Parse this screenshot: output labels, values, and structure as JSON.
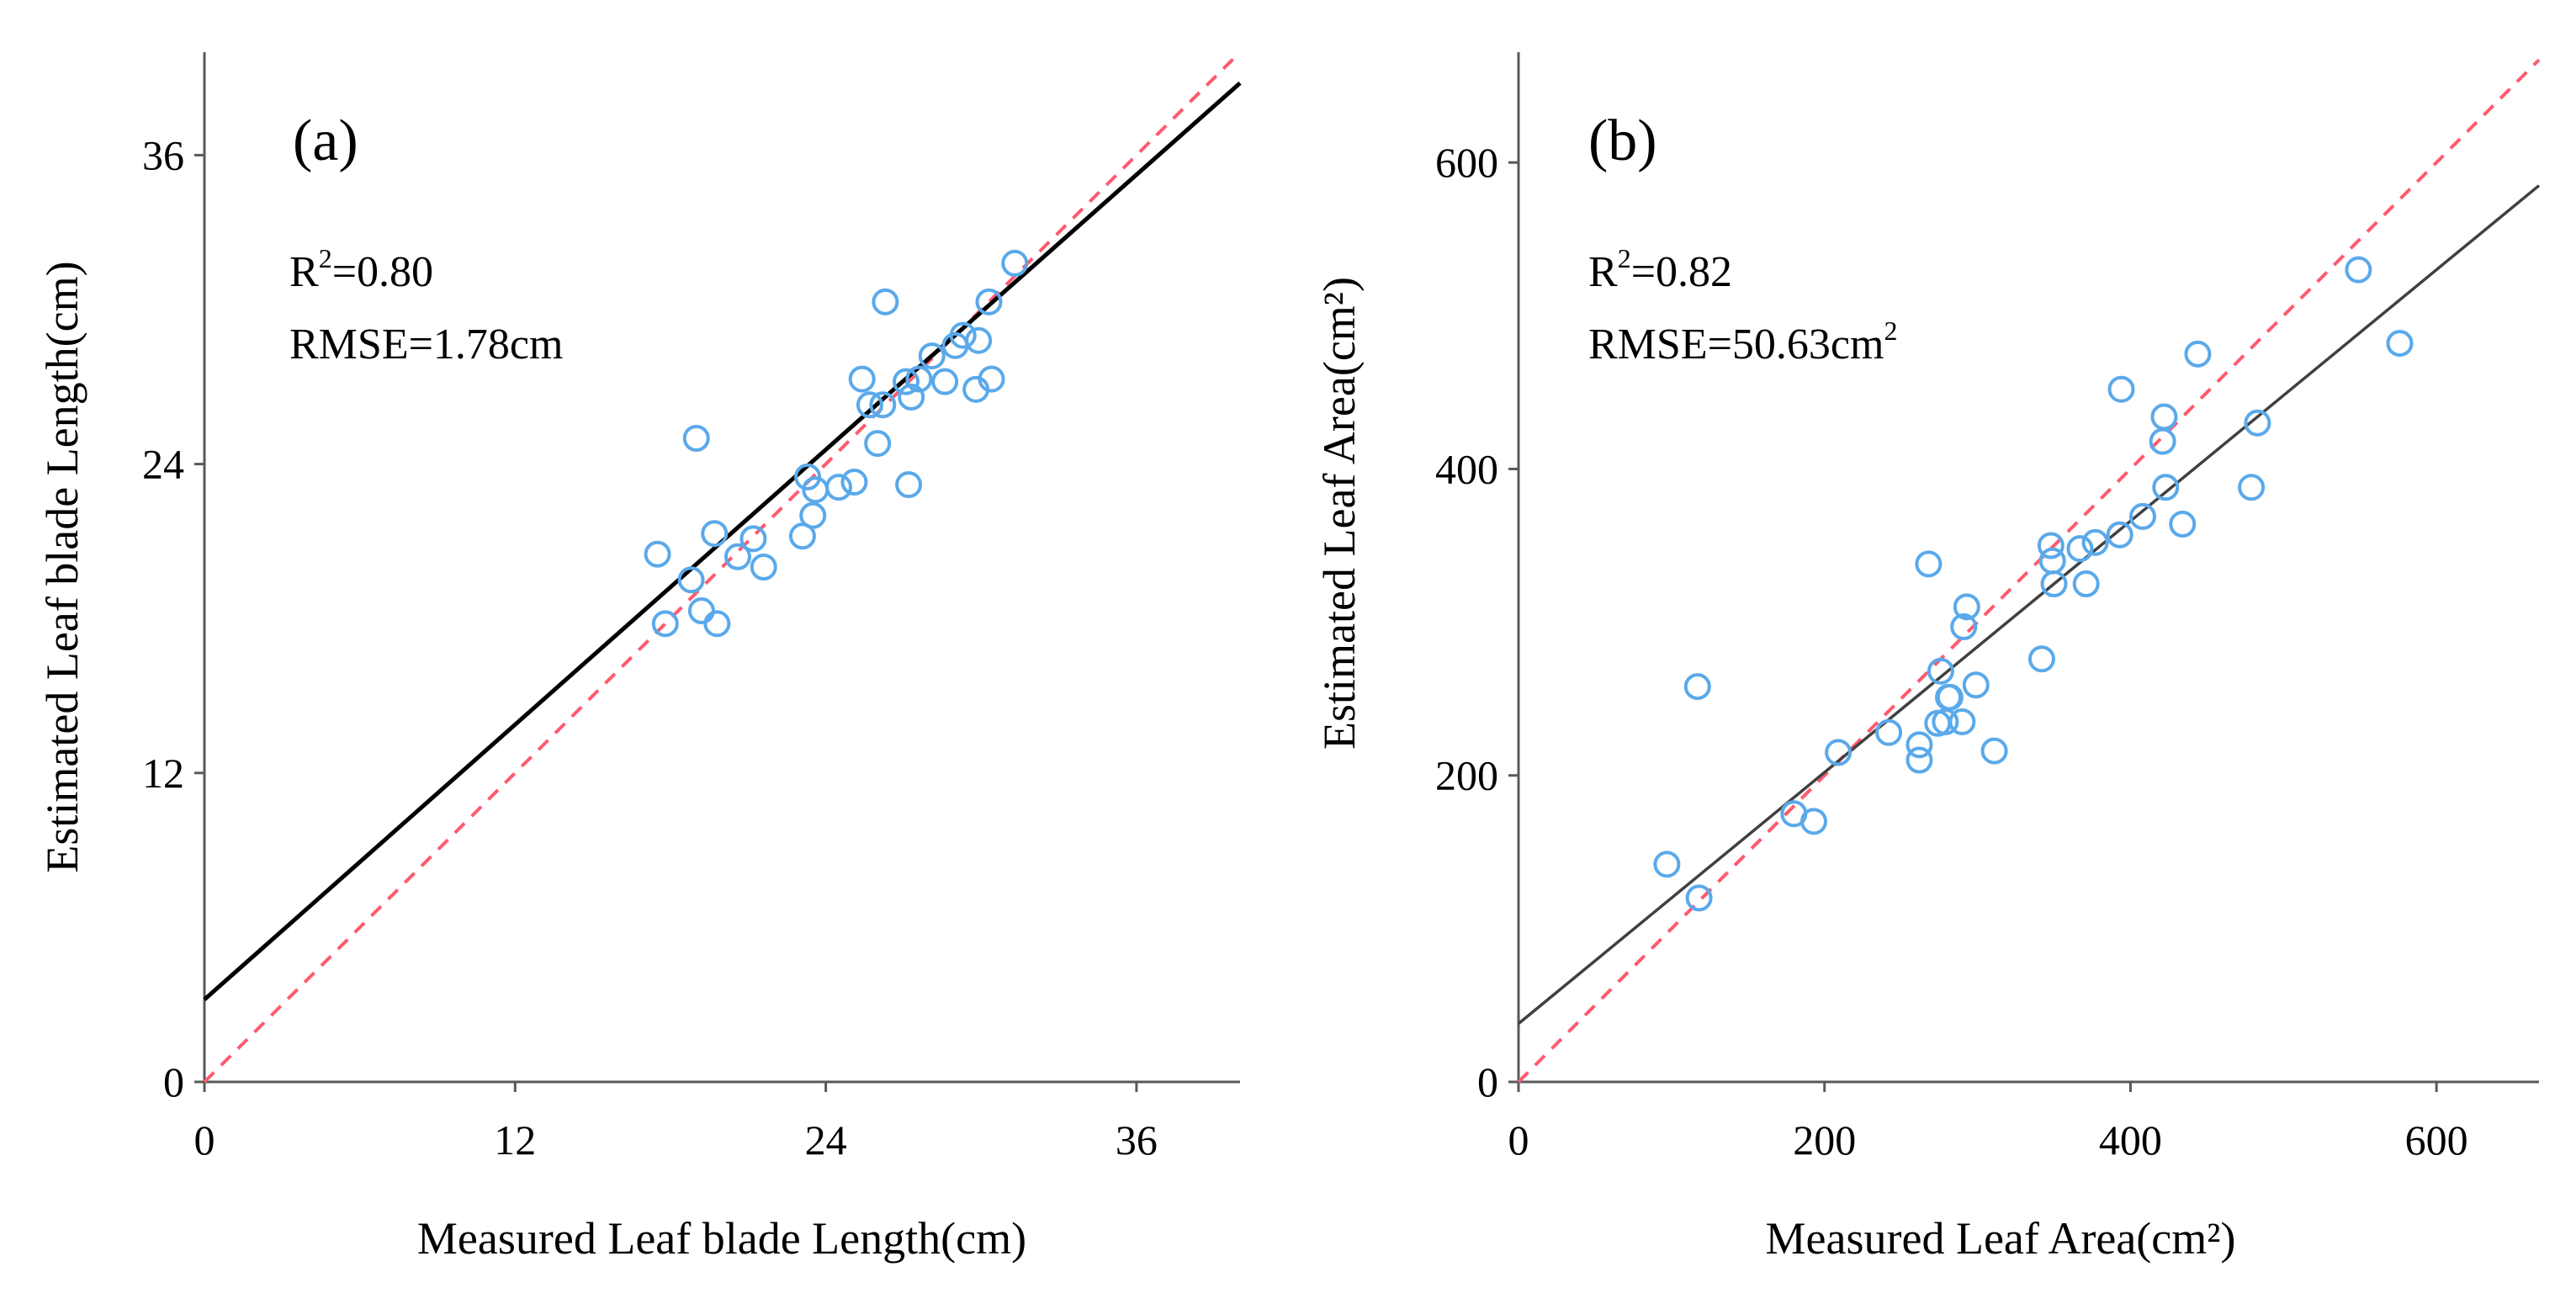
{
  "chart_data": [
    {
      "type": "scatter",
      "panel_label": "(a)",
      "xlabel": "Measured Leaf blade Length(cm)",
      "ylabel": "Estimated Leaf blade Length(cm)",
      "xlim": [
        0,
        40
      ],
      "ylim": [
        0,
        40
      ],
      "xticks": [
        0,
        12,
        24,
        36
      ],
      "yticks": [
        0,
        12,
        24,
        36
      ],
      "r2_label": "R",
      "r2_sup": "2",
      "r2_value": "=0.80",
      "rmse_label": "RMSE=1.78cm",
      "rmse_sup": "",
      "fit_line": {
        "intercept": 3.2,
        "slope": 0.89,
        "color": "#000000"
      },
      "identity_line": {
        "color": "#ff5a6e"
      },
      "points": [
        [
          17.5,
          20.5
        ],
        [
          17.8,
          17.8
        ],
        [
          18.8,
          19.5
        ],
        [
          19.0,
          25.0
        ],
        [
          19.2,
          18.3
        ],
        [
          19.7,
          21.3
        ],
        [
          19.8,
          17.8
        ],
        [
          20.6,
          20.4
        ],
        [
          21.2,
          21.1
        ],
        [
          21.6,
          20.0
        ],
        [
          23.1,
          21.2
        ],
        [
          23.3,
          23.5
        ],
        [
          23.5,
          22.0
        ],
        [
          23.6,
          23.0
        ],
        [
          24.5,
          23.1
        ],
        [
          25.1,
          23.3
        ],
        [
          25.4,
          27.3
        ],
        [
          25.7,
          26.3
        ],
        [
          26.0,
          24.8
        ],
        [
          26.2,
          26.3
        ],
        [
          26.3,
          30.3
        ],
        [
          27.1,
          27.2
        ],
        [
          27.2,
          23.2
        ],
        [
          27.3,
          26.6
        ],
        [
          27.6,
          27.3
        ],
        [
          28.1,
          28.2
        ],
        [
          28.6,
          27.2
        ],
        [
          29.0,
          28.6
        ],
        [
          29.3,
          29.0
        ],
        [
          29.8,
          26.9
        ],
        [
          29.9,
          28.8
        ],
        [
          30.3,
          30.3
        ],
        [
          30.4,
          27.3
        ],
        [
          31.3,
          31.8
        ]
      ]
    },
    {
      "type": "scatter",
      "panel_label": "(b)",
      "xlabel": "Measured Leaf Area(cm²)",
      "ylabel": "Estimated Leaf Area(cm²)",
      "xlim": [
        0,
        667
      ],
      "ylim": [
        0,
        672
      ],
      "xticks": [
        0,
        200,
        400,
        600
      ],
      "yticks": [
        0,
        200,
        400,
        600
      ],
      "r2_label": "R",
      "r2_sup": "2",
      "r2_value": "=0.82",
      "rmse_label": "RMSE=50.63cm",
      "rmse_sup": "2",
      "fit_line": {
        "intercept": 38,
        "slope": 0.82,
        "color": "#404040"
      },
      "identity_line": {
        "color": "#ff5a6e"
      },
      "points": [
        [
          97,
          142
        ],
        [
          117,
          258
        ],
        [
          118,
          120
        ],
        [
          180,
          175
        ],
        [
          193,
          170
        ],
        [
          209,
          215
        ],
        [
          242,
          228
        ],
        [
          262,
          210
        ],
        [
          262,
          220
        ],
        [
          268,
          338
        ],
        [
          274,
          234
        ],
        [
          276,
          268
        ],
        [
          279,
          235
        ],
        [
          281,
          251
        ],
        [
          282,
          251
        ],
        [
          290,
          235
        ],
        [
          291,
          297
        ],
        [
          293,
          310
        ],
        [
          299,
          259
        ],
        [
          311,
          216
        ],
        [
          342,
          276
        ],
        [
          348,
          350
        ],
        [
          349,
          340
        ],
        [
          350,
          325
        ],
        [
          367,
          348
        ],
        [
          371,
          325
        ],
        [
          377,
          352
        ],
        [
          393,
          357
        ],
        [
          394,
          452
        ],
        [
          408,
          369
        ],
        [
          421,
          418
        ],
        [
          422,
          434
        ],
        [
          423,
          388
        ],
        [
          434,
          364
        ],
        [
          444,
          475
        ],
        [
          479,
          388
        ],
        [
          483,
          430
        ],
        [
          549,
          530
        ],
        [
          576,
          482
        ]
      ]
    }
  ]
}
